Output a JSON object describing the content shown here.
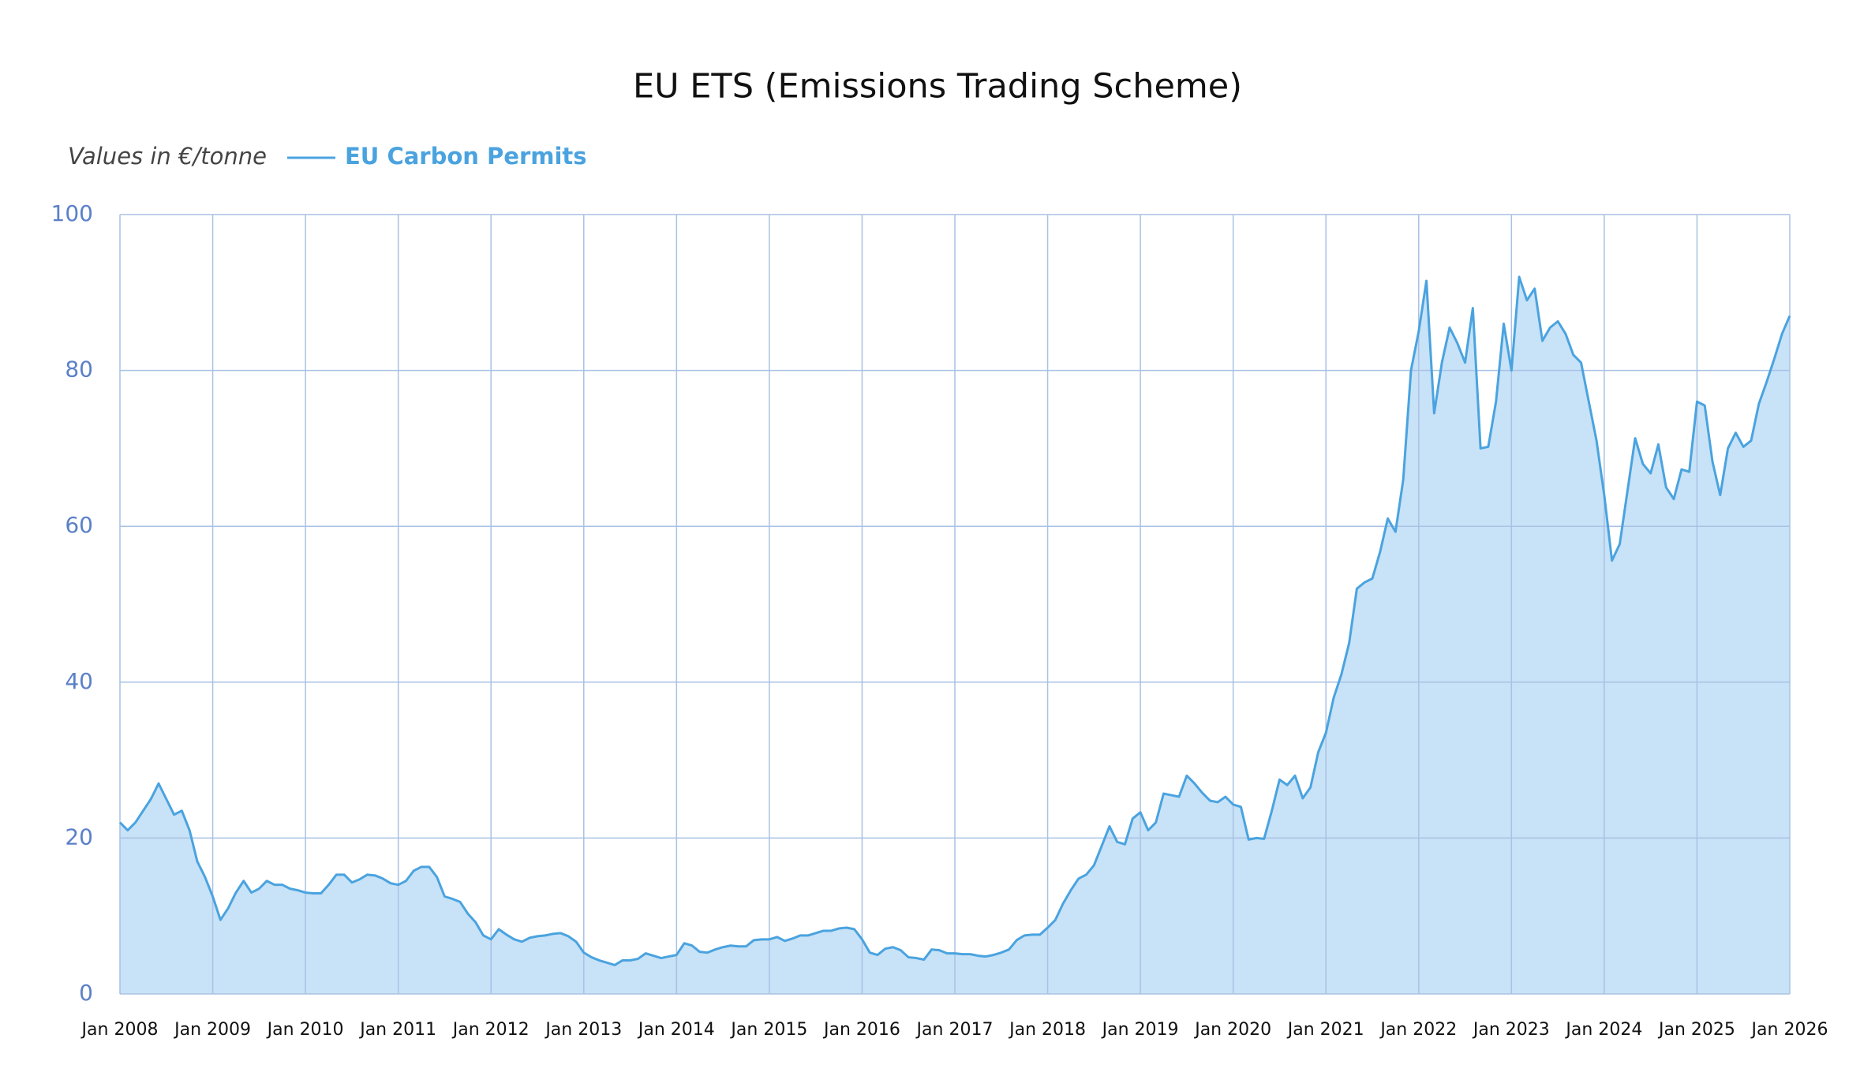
{
  "chart_data": {
    "type": "area",
    "title": "EU ETS (Emissions Trading Scheme)",
    "y_label": "Values in €/tonne",
    "x": [
      "2008-01",
      "2008-02",
      "2008-03",
      "2008-04",
      "2008-05",
      "2008-06",
      "2008-07",
      "2008-08",
      "2008-09",
      "2008-10",
      "2008-11",
      "2008-12",
      "2009-01",
      "2009-02",
      "2009-03",
      "2009-04",
      "2009-05",
      "2009-06",
      "2009-07",
      "2009-08",
      "2009-09",
      "2009-10",
      "2009-11",
      "2009-12",
      "2010-01",
      "2010-02",
      "2010-03",
      "2010-04",
      "2010-05",
      "2010-06",
      "2010-07",
      "2010-08",
      "2010-09",
      "2010-10",
      "2010-11",
      "2010-12",
      "2011-01",
      "2011-02",
      "2011-03",
      "2011-04",
      "2011-05",
      "2011-06",
      "2011-07",
      "2011-08",
      "2011-09",
      "2011-10",
      "2011-11",
      "2011-12",
      "2012-01",
      "2012-02",
      "2012-03",
      "2012-04",
      "2012-05",
      "2012-06",
      "2012-07",
      "2012-08",
      "2012-09",
      "2012-10",
      "2012-11",
      "2012-12",
      "2013-01",
      "2013-02",
      "2013-03",
      "2013-04",
      "2013-05",
      "2013-06",
      "2013-07",
      "2013-08",
      "2013-09",
      "2013-10",
      "2013-11",
      "2013-12",
      "2014-01",
      "2014-02",
      "2014-03",
      "2014-04",
      "2014-05",
      "2014-06",
      "2014-07",
      "2014-08",
      "2014-09",
      "2014-10",
      "2014-11",
      "2014-12",
      "2015-01",
      "2015-02",
      "2015-03",
      "2015-04",
      "2015-05",
      "2015-06",
      "2015-07",
      "2015-08",
      "2015-09",
      "2015-10",
      "2015-11",
      "2015-12",
      "2016-01",
      "2016-02",
      "2016-03",
      "2016-04",
      "2016-05",
      "2016-06",
      "2016-07",
      "2016-08",
      "2016-09",
      "2016-10",
      "2016-11",
      "2016-12",
      "2017-01",
      "2017-02",
      "2017-03",
      "2017-04",
      "2017-05",
      "2017-06",
      "2017-07",
      "2017-08",
      "2017-09",
      "2017-10",
      "2017-11",
      "2017-12",
      "2018-01",
      "2018-02",
      "2018-03",
      "2018-04",
      "2018-05",
      "2018-06",
      "2018-07",
      "2018-08",
      "2018-09",
      "2018-10",
      "2018-11",
      "2018-12",
      "2019-01",
      "2019-02",
      "2019-03",
      "2019-04",
      "2019-05",
      "2019-06",
      "2019-07",
      "2019-08",
      "2019-09",
      "2019-10",
      "2019-11",
      "2019-12",
      "2020-01",
      "2020-02",
      "2020-03",
      "2020-04",
      "2020-05",
      "2020-06",
      "2020-07",
      "2020-08",
      "2020-09",
      "2020-10",
      "2020-11",
      "2020-12",
      "2021-01",
      "2021-02",
      "2021-03",
      "2021-04",
      "2021-05",
      "2021-06",
      "2021-07",
      "2021-08",
      "2021-09",
      "2021-10",
      "2021-11",
      "2021-12",
      "2022-01",
      "2022-02",
      "2022-03",
      "2022-04",
      "2022-05",
      "2022-06",
      "2022-07",
      "2022-08",
      "2022-09",
      "2022-10",
      "2022-11",
      "2022-12",
      "2023-01",
      "2023-02",
      "2023-03",
      "2023-04",
      "2023-05",
      "2023-06",
      "2023-07",
      "2023-08",
      "2023-09",
      "2023-10",
      "2023-11",
      "2023-12",
      "2024-01",
      "2024-02",
      "2024-03",
      "2024-04",
      "2024-05",
      "2024-06",
      "2024-07",
      "2024-08",
      "2024-09",
      "2024-10",
      "2024-11",
      "2024-12",
      "2025-01",
      "2025-02",
      "2025-03",
      "2025-04",
      "2025-05",
      "2025-06",
      "2025-07",
      "2025-08",
      "2025-09",
      "2025-10",
      "2025-11",
      "2025-12",
      "2026-01"
    ],
    "series": [
      {
        "name": "EU Carbon Permits",
        "color": "#4aa3df",
        "fill": "#c8e2f7",
        "values": [
          22,
          21,
          22,
          23.5,
          25,
          27,
          25,
          23,
          23.5,
          21,
          17,
          15,
          12.5,
          9.5,
          11,
          13,
          14.5,
          13,
          13.5,
          14.5,
          14,
          14,
          13.5,
          13.3,
          13,
          12.9,
          12.9,
          14,
          15.3,
          15.3,
          14.3,
          14.7,
          15.3,
          15.2,
          14.8,
          14.2,
          14,
          14.5,
          15.8,
          16.3,
          16.3,
          15,
          12.5,
          12.2,
          11.8,
          10.3,
          9.2,
          7.5,
          7,
          8.3,
          7.6,
          7,
          6.7,
          7.2,
          7.4,
          7.5,
          7.7,
          7.8,
          7.4,
          6.7,
          5.3,
          4.7,
          4.3,
          4,
          3.7,
          4.3,
          4.3,
          4.5,
          5.2,
          4.9,
          4.6,
          4.8,
          5,
          6.5,
          6.2,
          5.4,
          5.3,
          5.7,
          6,
          6.2,
          6.1,
          6.1,
          6.9,
          7,
          7,
          7.3,
          6.8,
          7.1,
          7.5,
          7.5,
          7.8,
          8.1,
          8.1,
          8.4,
          8.5,
          8.3,
          7,
          5.3,
          5,
          5.8,
          6,
          5.6,
          4.7,
          4.6,
          4.4,
          5.7,
          5.6,
          5.2,
          5.2,
          5.1,
          5.1,
          4.9,
          4.8,
          5,
          5.3,
          5.7,
          6.9,
          7.5,
          7.6,
          7.6,
          8.5,
          9.5,
          11.6,
          13.3,
          14.8,
          15.3,
          16.5,
          19,
          21.5,
          19.5,
          19.2,
          22.5,
          23.3,
          21,
          22,
          25.7,
          25.5,
          25.3,
          28,
          27,
          25.8,
          24.8,
          24.6,
          25.3,
          24.3,
          24,
          19.8,
          20,
          19.9,
          23.5,
          27.5,
          26.8,
          28,
          25.1,
          26.5,
          31,
          33.5,
          38,
          41,
          45,
          52,
          52.8,
          53.3,
          56.7,
          61,
          59.3,
          66,
          80,
          85,
          91.5,
          74.5,
          81,
          85.5,
          83.5,
          81,
          88,
          70,
          70.2,
          76,
          86,
          80,
          92,
          89,
          90.5,
          83.8,
          85.5,
          86.3,
          84.7,
          82,
          81,
          76,
          71,
          64,
          55.6,
          57.7,
          64.5,
          71.3,
          68,
          66.8,
          70.5,
          65,
          63.5,
          67.3,
          67,
          76,
          75.5,
          68.3,
          64,
          70,
          72,
          70.2,
          71,
          75.7,
          78.5,
          81.5,
          84.7,
          87
        ]
      }
    ],
    "xlim": [
      "2008-01",
      "2026-01"
    ],
    "xticks": [
      {
        "value": "2008-01",
        "label": "Jan 2008"
      },
      {
        "value": "2009-01",
        "label": "Jan 2009"
      },
      {
        "value": "2010-01",
        "label": "Jan 2010"
      },
      {
        "value": "2011-01",
        "label": "Jan 2011"
      },
      {
        "value": "2012-01",
        "label": "Jan 2012"
      },
      {
        "value": "2013-01",
        "label": "Jan 2013"
      },
      {
        "value": "2014-01",
        "label": "Jan 2014"
      },
      {
        "value": "2015-01",
        "label": "Jan 2015"
      },
      {
        "value": "2016-01",
        "label": "Jan 2016"
      },
      {
        "value": "2017-01",
        "label": "Jan 2017"
      },
      {
        "value": "2018-01",
        "label": "Jan 2018"
      },
      {
        "value": "2019-01",
        "label": "Jan 2019"
      },
      {
        "value": "2020-01",
        "label": "Jan 2020"
      },
      {
        "value": "2021-01",
        "label": "Jan 2021"
      },
      {
        "value": "2022-01",
        "label": "Jan 2022"
      },
      {
        "value": "2023-01",
        "label": "Jan 2023"
      },
      {
        "value": "2024-01",
        "label": "Jan 2024"
      },
      {
        "value": "2025-01",
        "label": "Jan 2025"
      },
      {
        "value": "2026-01",
        "label": "Jan 2026"
      }
    ],
    "ylim": [
      0,
      100
    ],
    "yticks": [
      0,
      20,
      40,
      60,
      80,
      100
    ],
    "grid": true
  }
}
